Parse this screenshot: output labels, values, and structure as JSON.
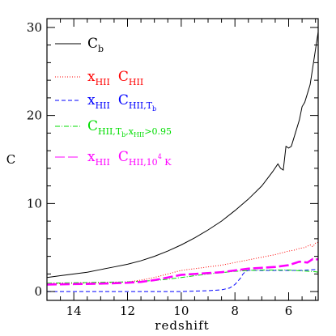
{
  "chart_data": {
    "type": "line",
    "xlabel": "redshift",
    "ylabel": "C",
    "xlim": [
      15,
      4.9
    ],
    "ylim": [
      -1,
      31
    ],
    "x_ticks": [
      14,
      12,
      10,
      8,
      6
    ],
    "y_ticks": [
      0,
      10,
      20,
      30
    ],
    "legend_position": "top-left",
    "series": [
      {
        "name": "C_b",
        "legend": {
          "main": "C",
          "sub": "b"
        },
        "color": "#000000",
        "style": "solid",
        "x": [
          15,
          14.5,
          14,
          13.5,
          13,
          12.5,
          12,
          11.5,
          11,
          10.5,
          10,
          9.5,
          9,
          8.5,
          8,
          7.5,
          7,
          6.8,
          6.6,
          6.4,
          6.3,
          6.2,
          6.1,
          6.0,
          5.9,
          5.8,
          5.7,
          5.6,
          5.5,
          5.4,
          5.3,
          5.2,
          5.1,
          5.0,
          4.9
        ],
        "y": [
          1.6,
          1.8,
          2.0,
          2.2,
          2.5,
          2.8,
          3.1,
          3.5,
          4.0,
          4.6,
          5.3,
          6.1,
          7.0,
          8.0,
          9.2,
          10.5,
          12.0,
          12.8,
          13.6,
          14.5,
          14.0,
          13.8,
          16.5,
          16.3,
          16.5,
          17.5,
          18.5,
          19.5,
          21.0,
          21.5,
          22.5,
          23.5,
          25.5,
          27.5,
          29.5
        ]
      },
      {
        "name": "x_HII C_HII",
        "legend": {
          "main1": "x",
          "sub1": "HII",
          "main2": "C",
          "sub2": "HII"
        },
        "color": "#ff0000",
        "style": "dotted",
        "x": [
          15,
          14,
          13,
          12,
          11.5,
          11,
          10.5,
          10,
          9.5,
          9,
          8.5,
          8,
          7.5,
          7,
          6.5,
          6,
          5.8,
          5.6,
          5.4,
          5.2,
          5.1,
          5.0,
          4.9
        ],
        "y": [
          0.9,
          0.95,
          1.0,
          1.1,
          1.3,
          1.6,
          2.0,
          2.4,
          2.6,
          2.8,
          3.0,
          3.3,
          3.6,
          3.9,
          4.2,
          4.6,
          4.7,
          4.9,
          5.0,
          5.3,
          5.1,
          5.5,
          5.6
        ]
      },
      {
        "name": "x_HII C_HII,T_b",
        "legend": {
          "main1": "x",
          "sub1": "HII",
          "main2": "C",
          "sub2": "HII,T",
          "subsub2": "b"
        },
        "color": "#0000ff",
        "style": "dashed",
        "x": [
          15,
          14,
          13,
          12,
          11,
          10,
          9,
          8.5,
          8.2,
          8.0,
          7.8,
          7.7,
          7.6,
          7.5,
          7.3,
          7,
          6.5,
          6,
          5.5,
          5.0,
          4.9
        ],
        "y": [
          0,
          0,
          0,
          0,
          0,
          0,
          0.1,
          0.2,
          0.4,
          0.8,
          1.5,
          2.0,
          2.3,
          2.4,
          2.4,
          2.4,
          2.4,
          2.4,
          2.4,
          2.5,
          2.5
        ]
      },
      {
        "name": "C_HII,T_b,x_HII>0.95",
        "legend": {
          "main": "C",
          "sub": "HII,T",
          "subsub": "b",
          "sub_rest": ",x",
          "subsub_x": "HII",
          "cond": ">0.95"
        },
        "color": "#00dd00",
        "style": "dashdot",
        "x": [
          15,
          14,
          13,
          12,
          11,
          10.5,
          10,
          9.5,
          9,
          8.5,
          8,
          7.5,
          7,
          6.5,
          6,
          5.5,
          5.0,
          4.9
        ],
        "y": [
          0.95,
          1.0,
          1.05,
          1.1,
          1.25,
          1.4,
          1.6,
          1.8,
          2.0,
          2.15,
          2.3,
          2.4,
          2.45,
          2.45,
          2.45,
          2.35,
          2.25,
          2.2
        ]
      },
      {
        "name": "x_HII C_HII,10^4 K",
        "legend": {
          "main1": "x",
          "sub1": "HII",
          "main2": "C",
          "sub2": "HII,10",
          "sup2": "4",
          "sub2_rest": " K"
        },
        "color": "#ff00ff",
        "style": "longdash",
        "x": [
          15,
          14,
          13,
          12,
          11.5,
          11,
          10.5,
          10,
          9.5,
          9,
          8.5,
          8,
          7.5,
          7,
          6.5,
          6,
          5.6,
          5.3,
          5.1,
          5.0,
          4.9
        ],
        "y": [
          0.8,
          0.85,
          0.9,
          1.0,
          1.1,
          1.3,
          1.6,
          1.9,
          2.0,
          2.1,
          2.2,
          2.4,
          2.6,
          2.7,
          2.8,
          3.0,
          3.4,
          3.3,
          3.7,
          3.6,
          3.7
        ]
      }
    ]
  }
}
